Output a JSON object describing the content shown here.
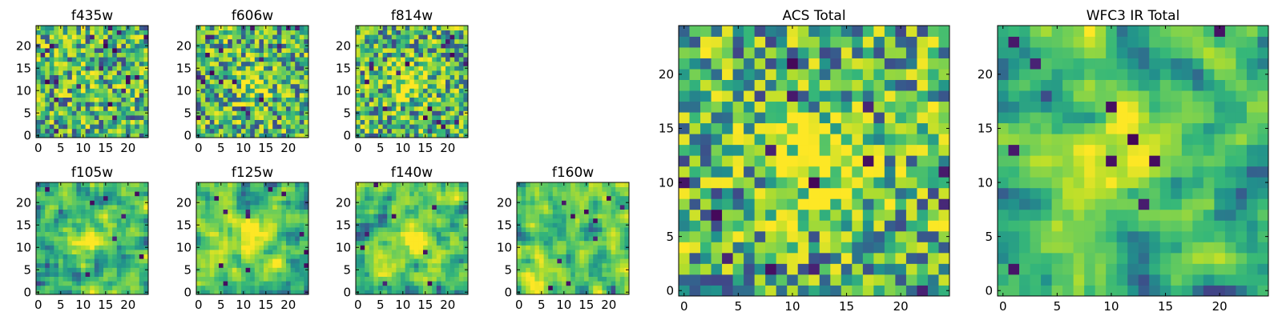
{
  "figure": {
    "colormap": "viridis",
    "colors": {
      "axis_frame": "#000000",
      "text": "#000000",
      "background": "#ffffff"
    }
  },
  "chart_data": [
    {
      "id": "f435w",
      "type": "heatmap",
      "title": "f435w",
      "grid_size": 25,
      "xlim": [
        0,
        25
      ],
      "ylim": [
        0,
        25
      ],
      "x_ticks": [
        0,
        5,
        10,
        15,
        20
      ],
      "x_tick_labels": [
        "0",
        "5",
        "10",
        "15",
        "20"
      ],
      "y_ticks": [
        0,
        5,
        10,
        15,
        20
      ],
      "y_tick_labels": [
        "0",
        "5",
        "10",
        "15",
        "20"
      ],
      "seed": 11,
      "smoothing": 0,
      "vmin": 0,
      "vmax": 1,
      "bright_spot": {
        "x": 12,
        "y": 12,
        "strength": 0.05
      },
      "dark_pixels": 22
    },
    {
      "id": "f606w",
      "type": "heatmap",
      "title": "f606w",
      "grid_size": 25,
      "xlim": [
        0,
        25
      ],
      "ylim": [
        0,
        25
      ],
      "x_ticks": [
        0,
        5,
        10,
        15,
        20
      ],
      "x_tick_labels": [
        "0",
        "5",
        "10",
        "15",
        "20"
      ],
      "y_ticks": [
        0,
        5,
        10,
        15,
        20
      ],
      "y_tick_labels": [
        "0",
        "5",
        "10",
        "15",
        "20"
      ],
      "seed": 23,
      "smoothing": 0,
      "vmin": 0,
      "vmax": 1,
      "bright_spot": {
        "x": 12,
        "y": 12,
        "strength": 0.25
      },
      "dark_pixels": 18
    },
    {
      "id": "f814w",
      "type": "heatmap",
      "title": "f814w",
      "grid_size": 25,
      "xlim": [
        0,
        25
      ],
      "ylim": [
        0,
        25
      ],
      "x_ticks": [
        0,
        5,
        10,
        15,
        20
      ],
      "x_tick_labels": [
        "0",
        "5",
        "10",
        "15",
        "20"
      ],
      "y_ticks": [
        0,
        5,
        10,
        15,
        20
      ],
      "y_tick_labels": [
        "0",
        "5",
        "10",
        "15",
        "20"
      ],
      "seed": 37,
      "smoothing": 0,
      "vmin": 0,
      "vmax": 1,
      "bright_spot": {
        "x": 12,
        "y": 12,
        "strength": 0.3
      },
      "dark_pixels": 16
    },
    {
      "id": "f105w",
      "type": "heatmap",
      "title": "f105w",
      "grid_size": 25,
      "xlim": [
        0,
        25
      ],
      "ylim": [
        0,
        25
      ],
      "x_ticks": [
        0,
        5,
        10,
        15,
        20
      ],
      "x_tick_labels": [
        "0",
        "5",
        "10",
        "15",
        "20"
      ],
      "y_ticks": [
        0,
        5,
        10,
        15,
        20
      ],
      "y_tick_labels": [
        "0",
        "5",
        "10",
        "15",
        "20"
      ],
      "seed": 41,
      "smoothing": 1,
      "vmin": 0,
      "vmax": 1,
      "bright_spot": {
        "x": 12,
        "y": 12,
        "strength": 0.35
      },
      "dark_pixels": 8
    },
    {
      "id": "f125w",
      "type": "heatmap",
      "title": "f125w",
      "grid_size": 25,
      "xlim": [
        0,
        25
      ],
      "ylim": [
        0,
        25
      ],
      "x_ticks": [
        0,
        5,
        10,
        15,
        20
      ],
      "x_tick_labels": [
        "0",
        "5",
        "10",
        "15",
        "20"
      ],
      "y_ticks": [
        0,
        5,
        10,
        15,
        20
      ],
      "y_tick_labels": [
        "0",
        "5",
        "10",
        "15",
        "20"
      ],
      "seed": 53,
      "smoothing": 1,
      "vmin": 0,
      "vmax": 1,
      "bright_spot": {
        "x": 12,
        "y": 12,
        "strength": 0.3
      },
      "dark_pixels": 12
    },
    {
      "id": "f140w",
      "type": "heatmap",
      "title": "f140w",
      "grid_size": 25,
      "xlim": [
        0,
        25
      ],
      "ylim": [
        0,
        25
      ],
      "x_ticks": [
        0,
        5,
        10,
        15,
        20
      ],
      "x_tick_labels": [
        "0",
        "5",
        "10",
        "15",
        "20"
      ],
      "y_ticks": [
        0,
        5,
        10,
        15,
        20
      ],
      "y_tick_labels": [
        "0",
        "5",
        "10",
        "15",
        "20"
      ],
      "seed": 67,
      "smoothing": 1,
      "vmin": 0,
      "vmax": 1,
      "bright_spot": {
        "x": 12,
        "y": 12,
        "strength": 0.3
      },
      "dark_pixels": 8
    },
    {
      "id": "f160w",
      "type": "heatmap",
      "title": "f160w",
      "grid_size": 25,
      "xlim": [
        0,
        25
      ],
      "ylim": [
        0,
        25
      ],
      "x_ticks": [
        0,
        5,
        10,
        15,
        20
      ],
      "x_tick_labels": [
        "0",
        "5",
        "10",
        "15",
        "20"
      ],
      "y_ticks": [
        0,
        5,
        10,
        15,
        20
      ],
      "y_tick_labels": [
        "0",
        "5",
        "10",
        "15",
        "20"
      ],
      "seed": 79,
      "smoothing": 1,
      "vmin": 0,
      "vmax": 1,
      "bright_spot": {
        "x": 4,
        "y": 3,
        "strength": 0.35
      },
      "dark_pixels": 10
    },
    {
      "id": "acs-total",
      "type": "heatmap",
      "title": "ACS Total",
      "grid_size": 25,
      "xlim": [
        0,
        25
      ],
      "ylim": [
        0,
        25
      ],
      "x_ticks": [
        0,
        5,
        10,
        15,
        20
      ],
      "x_tick_labels": [
        "0",
        "5",
        "10",
        "15",
        "20"
      ],
      "y_ticks": [
        0,
        5,
        10,
        15,
        20
      ],
      "y_tick_labels": [
        "0",
        "5",
        "10",
        "15",
        "20"
      ],
      "seed": 97,
      "smoothing": 0,
      "vmin": 0,
      "vmax": 1,
      "bright_spot": {
        "x": 12,
        "y": 12,
        "strength": 0.35
      },
      "dark_pixels": 14
    },
    {
      "id": "wfc3-ir-total",
      "type": "heatmap",
      "title": "WFC3 IR Total",
      "grid_size": 25,
      "xlim": [
        0,
        25
      ],
      "ylim": [
        0,
        25
      ],
      "x_ticks": [
        0,
        5,
        10,
        15,
        20
      ],
      "x_tick_labels": [
        "0",
        "5",
        "10",
        "15",
        "20"
      ],
      "y_ticks": [
        0,
        5,
        10,
        15,
        20
      ],
      "y_tick_labels": [
        "0",
        "5",
        "10",
        "15",
        "20"
      ],
      "seed": 101,
      "smoothing": 1,
      "vmin": 0,
      "vmax": 1,
      "bright_spot": {
        "x": 12,
        "y": 13,
        "strength": 0.4
      },
      "dark_pixels": 10
    }
  ]
}
